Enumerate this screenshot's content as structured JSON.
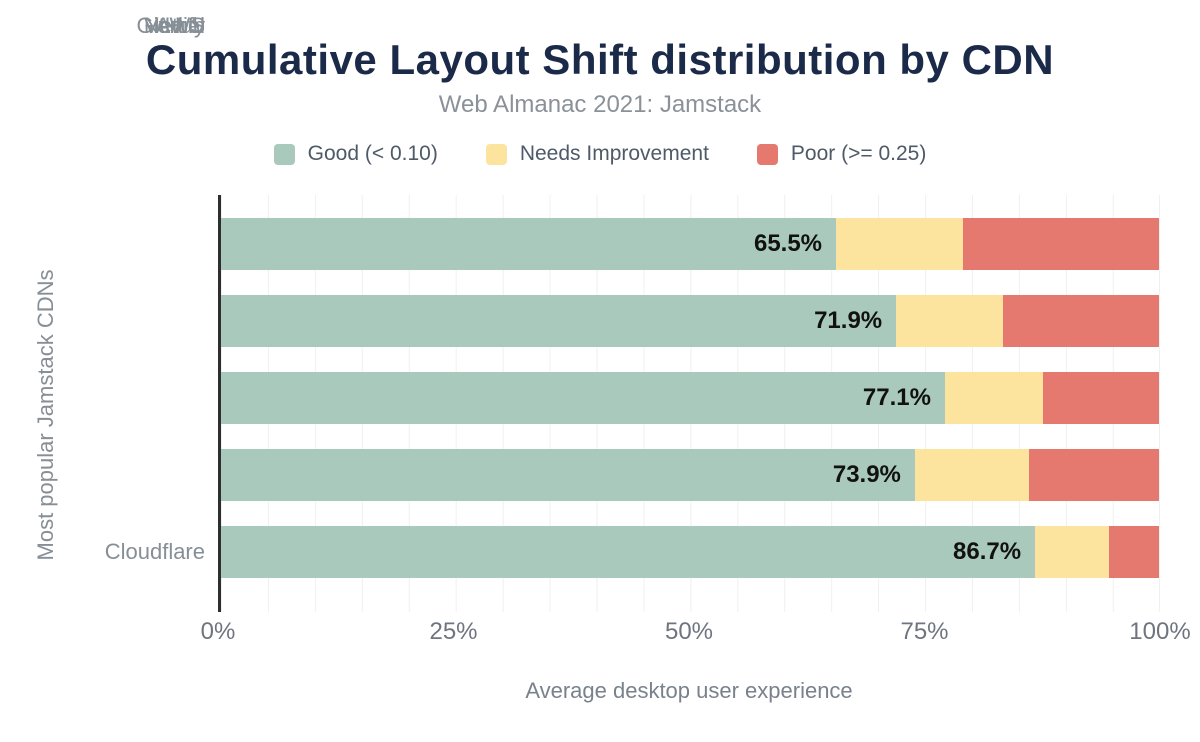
{
  "chart": {
    "title": "Cumulative Layout Shift distribution by CDN",
    "subtitle": "Web Almanac 2021: Jamstack"
  },
  "legend": {
    "items": [
      {
        "label": "Good (< 0.10)",
        "color": "#a8c9bb"
      },
      {
        "label": "Needs Improvement",
        "color": "#fde49e"
      },
      {
        "label": "Poor (>= 0.25)",
        "color": "#e5796f"
      }
    ]
  },
  "axes": {
    "x_ticks": [
      "0%",
      "25%",
      "50%",
      "75%",
      "100%"
    ],
    "x_title": "Average desktop user experience",
    "y_title": "Most popular Jamstack CDNs"
  },
  "chart_data": {
    "type": "bar",
    "orientation": "horizontal",
    "stacked": true,
    "title": "Cumulative Layout Shift distribution by CDN",
    "subtitle": "Web Almanac 2021: Jamstack",
    "xlabel": "Average desktop user experience",
    "ylabel": "Most popular Jamstack CDNs",
    "xlim": [
      0,
      100
    ],
    "x_tick_interval": 25,
    "gridline_interval": 5,
    "grid": true,
    "legend_position": "top",
    "categories": [
      "Cloudflare",
      "AWS",
      "Netlify",
      "Vercel",
      "GitHub"
    ],
    "series": [
      {
        "name": "Good (< 0.10)",
        "color": "#a8c9bb",
        "values": [
          65.5,
          71.9,
          77.1,
          73.9,
          86.7
        ]
      },
      {
        "name": "Needs Improvement",
        "color": "#fde49e",
        "values": [
          13.5,
          11.4,
          10.4,
          12.1,
          7.9
        ]
      },
      {
        "name": "Poor (>= 0.25)",
        "color": "#e5796f",
        "values": [
          21.0,
          16.7,
          12.5,
          14.0,
          5.4
        ]
      }
    ],
    "bar_labels": [
      "65.5%",
      "71.9%",
      "77.1%",
      "73.9%",
      "86.7%"
    ]
  },
  "colors": {
    "title": "#1b2a49",
    "muted_text": "#868e96",
    "tick_text": "#6e757e",
    "legend_text": "#4e5a68",
    "data_label": "#111111",
    "axis_line": "#2e2e2e",
    "gridline": "#eef1ef",
    "good": "#a8c9bb",
    "needs_improvement": "#fde49e",
    "poor": "#e5796f",
    "background": "#ffffff"
  }
}
